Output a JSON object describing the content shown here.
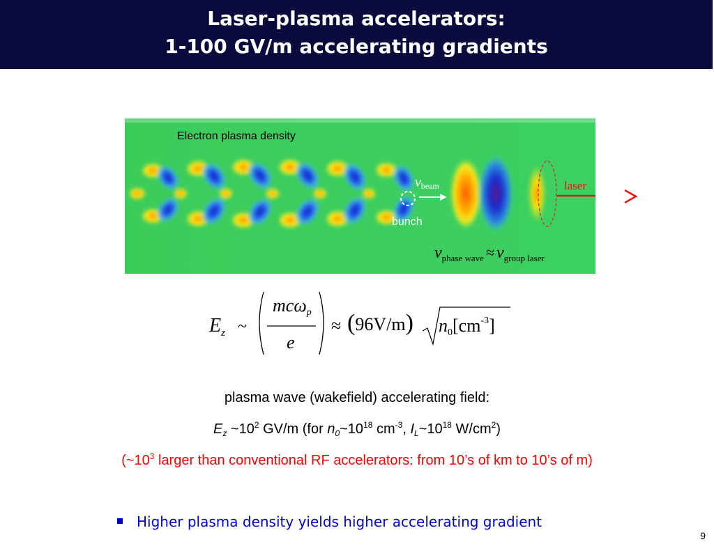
{
  "slide": {
    "title_line1": "Laser-plasma accelerators:",
    "title_line2": "1-100 GV/m  accelerating gradients",
    "page_number": "9"
  },
  "figure": {
    "density_label": "Electron plasma density",
    "v_symbol": "v",
    "beam_sub": "beam",
    "laser_label": "laser",
    "bunch_label": "bunch",
    "phase_sub": "phase wave",
    "approx": "≈",
    "group_sub": "group laser"
  },
  "formula": {
    "E": "E",
    "z": "z",
    "tilde": "~",
    "numerator": "mcω",
    "numerator_sub": "p",
    "denominator": "e",
    "approx": "≈",
    "coef": "96V/m",
    "n": "n",
    "n_sub": "0",
    "unit": "[cm",
    "unit_exp": "-3",
    "unit_close": "]"
  },
  "text": {
    "wakefield_line": "plasma wave (wakefield) accelerating field:",
    "ez_E": "E",
    "ez_z": "z",
    "ez_approx": " ~10",
    "ez_exp": "2",
    "ez_unit": " GV/m  (for ",
    "ez_n": "n",
    "ez_n_sub": "0",
    "ez_n_val": "~10",
    "ez_n_exp": "18",
    "ez_cm": " cm",
    "ez_cm_exp": "-3",
    "ez_comma": ", ",
    "ez_I": "I",
    "ez_L": "L",
    "ez_I_val": "~10",
    "ez_I_exp": "18",
    "ez_wcm": " W/cm",
    "ez_wcm_exp": "2",
    "ez_close": ")",
    "red_pre": "(~10",
    "red_exp": "3",
    "red_post": " larger than conventional RF accelerators: from 10’s of km to 10’s of m)"
  },
  "bullet": "Higher plasma density yields higher accelerating gradient",
  "colors": {
    "title_bg": "#0a0a3c",
    "bullet": "#0000cc",
    "red": "#ff0000"
  }
}
